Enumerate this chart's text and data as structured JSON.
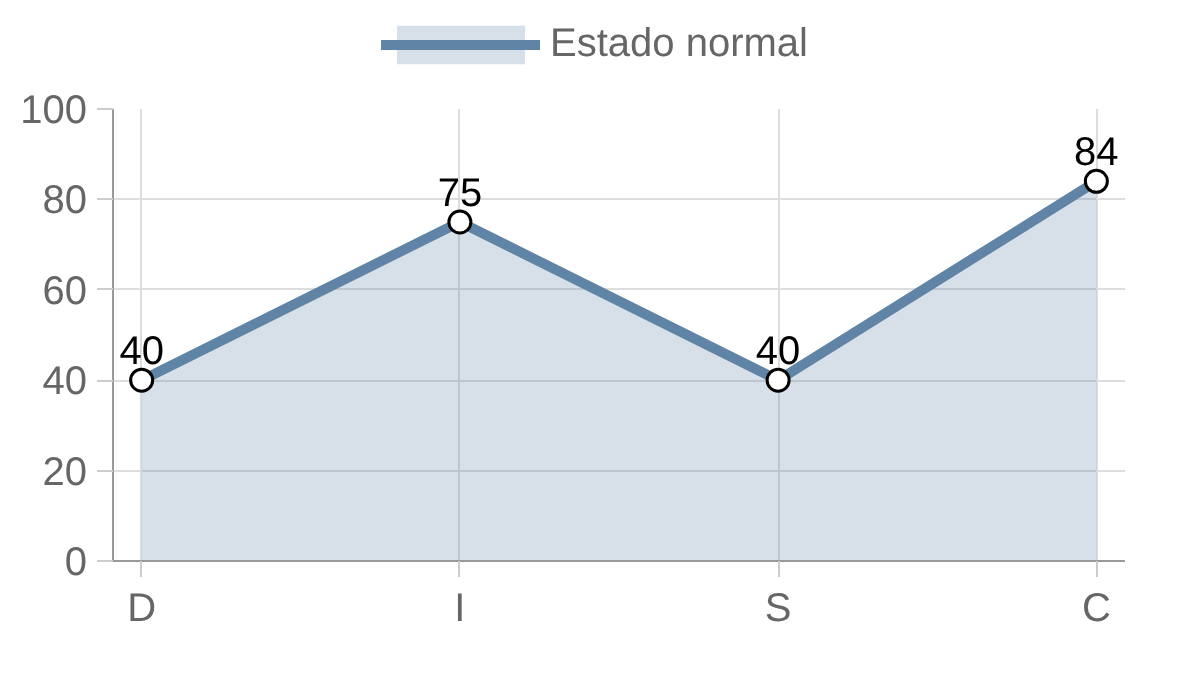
{
  "chart_data": {
    "type": "area",
    "categories": [
      "D",
      "I",
      "S",
      "C"
    ],
    "series": [
      {
        "name": "Estado normal",
        "color": "#5f84a6",
        "values": [
          40,
          75,
          40,
          84
        ]
      }
    ],
    "ylim": [
      0,
      100
    ],
    "yticks": [
      0,
      20,
      40,
      60,
      80,
      100
    ],
    "grid": true,
    "legend": "top",
    "marker": "circle",
    "line_style": "solid",
    "data_labels": true
  }
}
